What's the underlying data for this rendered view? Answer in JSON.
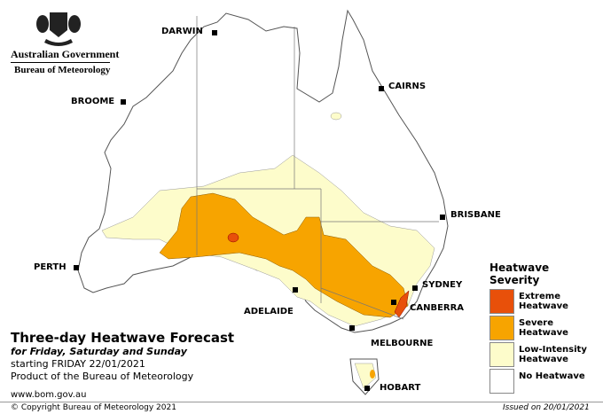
{
  "header": {
    "government": "Australian Government",
    "bureau": "Bureau of Meteorology"
  },
  "cities": [
    "DARWIN",
    "CAIRNS",
    "BROOME",
    "BRISBANE",
    "PERTH",
    "SYDNEY",
    "ADELAIDE",
    "CANBERRA",
    "MELBOURNE",
    "HOBART"
  ],
  "title": "Three-day Heatwave Forecast",
  "subtitle": "for Friday, Saturday and Sunday",
  "starting": "starting FRIDAY 22/01/2021",
  "product": "Product of the Bureau of Meteorology",
  "url": "www.bom.gov.au",
  "copyright": "© Copyright Bureau of Meteorology 2021",
  "issued": "Issued on 20/01/2021",
  "legend": {
    "title": "Heatwave Severity",
    "items": [
      {
        "label": "Extreme Heatwave",
        "color": "#e8500a"
      },
      {
        "label": "Severe Heatwave",
        "color": "#f7a400"
      },
      {
        "label": "Low-Intensity Heatwave",
        "color": "#fdfccb"
      },
      {
        "label": "No Heatwave",
        "color": "#ffffff"
      }
    ]
  }
}
